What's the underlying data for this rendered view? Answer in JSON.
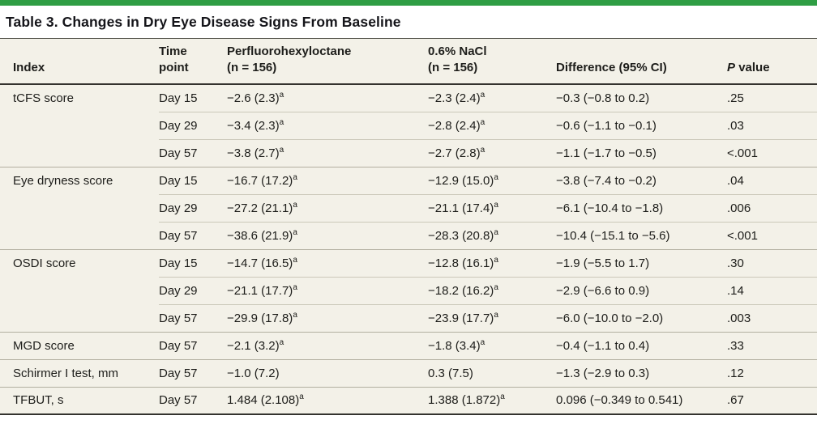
{
  "colors": {
    "accent_green": "#2f9e44",
    "table_band_beige": "#f3f1e8",
    "rule_dark": "#34332e",
    "text": "#1d1d1a"
  },
  "title": "Table 3. Changes in Dry Eye Disease Signs From Baseline",
  "header": {
    "index": "Index",
    "time": {
      "line1": "Time",
      "line2": "point"
    },
    "pfho": {
      "line1": "Perfluorohexyloctane",
      "line2": "(n = 156)"
    },
    "nacl": {
      "line1": "0.6% NaCl",
      "line2": "(n = 156)"
    },
    "difference": "Difference (95% CI)",
    "p": {
      "italic": "P",
      "rest": "value"
    }
  },
  "rows": [
    {
      "index": "tCFS score",
      "time": "Day 15",
      "pfho": {
        "text": "−2.6 (2.3)",
        "sup": "a"
      },
      "nacl": {
        "text": "−2.3 (2.4)",
        "sup": "a"
      },
      "diff": "−0.3 (−0.8 to 0.2)",
      "p": ".25"
    },
    {
      "index": "",
      "time": "Day 29",
      "pfho": {
        "text": "−3.4 (2.3)",
        "sup": "a"
      },
      "nacl": {
        "text": "−2.8 (2.4)",
        "sup": "a"
      },
      "diff": "−0.6 (−1.1 to −0.1)",
      "p": ".03"
    },
    {
      "index": "",
      "time": "Day 57",
      "pfho": {
        "text": "−3.8 (2.7)",
        "sup": "a"
      },
      "nacl": {
        "text": "−2.7 (2.8)",
        "sup": "a"
      },
      "diff": "−1.1 (−1.7 to −0.5)",
      "p": "<.001"
    },
    {
      "index": "Eye dryness score",
      "time": "Day 15",
      "pfho": {
        "text": "−16.7 (17.2)",
        "sup": "a"
      },
      "nacl": {
        "text": "−12.9 (15.0)",
        "sup": "a"
      },
      "diff": "−3.8 (−7.4 to −0.2)",
      "p": ".04"
    },
    {
      "index": "",
      "time": "Day 29",
      "pfho": {
        "text": "−27.2 (21.1)",
        "sup": "a"
      },
      "nacl": {
        "text": "−21.1 (17.4)",
        "sup": "a"
      },
      "diff": "−6.1 (−10.4 to −1.8)",
      "p": ".006"
    },
    {
      "index": "",
      "time": "Day 57",
      "pfho": {
        "text": "−38.6 (21.9)",
        "sup": "a"
      },
      "nacl": {
        "text": "−28.3 (20.8)",
        "sup": "a"
      },
      "diff": "−10.4 (−15.1 to −5.6)",
      "p": "<.001"
    },
    {
      "index": "OSDI score",
      "time": "Day 15",
      "pfho": {
        "text": "−14.7 (16.5)",
        "sup": "a"
      },
      "nacl": {
        "text": "−12.8 (16.1)",
        "sup": "a"
      },
      "diff": "−1.9 (−5.5 to 1.7)",
      "p": ".30"
    },
    {
      "index": "",
      "time": "Day 29",
      "pfho": {
        "text": "−21.1 (17.7)",
        "sup": "a"
      },
      "nacl": {
        "text": "−18.2 (16.2)",
        "sup": "a"
      },
      "diff": "−2.9 (−6.6 to 0.9)",
      "p": ".14"
    },
    {
      "index": "",
      "time": "Day 57",
      "pfho": {
        "text": "−29.9 (17.8)",
        "sup": "a"
      },
      "nacl": {
        "text": "−23.9 (17.7)",
        "sup": "a"
      },
      "diff": "−6.0 (−10.0 to −2.0)",
      "p": ".003"
    },
    {
      "index": "MGD score",
      "time": "Day 57",
      "pfho": {
        "text": "−2.1 (3.2)",
        "sup": "a"
      },
      "nacl": {
        "text": "−1.8 (3.4)",
        "sup": "a"
      },
      "diff": "−0.4 (−1.1 to 0.4)",
      "p": ".33"
    },
    {
      "index": "Schirmer I test, mm",
      "time": "Day 57",
      "pfho": {
        "text": "−1.0 (7.2)",
        "sup": ""
      },
      "nacl": {
        "text": "0.3 (7.5)",
        "sup": ""
      },
      "diff": "−1.3 (−2.9 to 0.3)",
      "p": ".12"
    },
    {
      "index": "TFBUT, s",
      "time": "Day 57",
      "pfho": {
        "text": "1.484 (2.108)",
        "sup": "a"
      },
      "nacl": {
        "text": "1.388 (1.872)",
        "sup": "a"
      },
      "diff": "0.096 (−0.349 to 0.541)",
      "p": ".67"
    }
  ]
}
